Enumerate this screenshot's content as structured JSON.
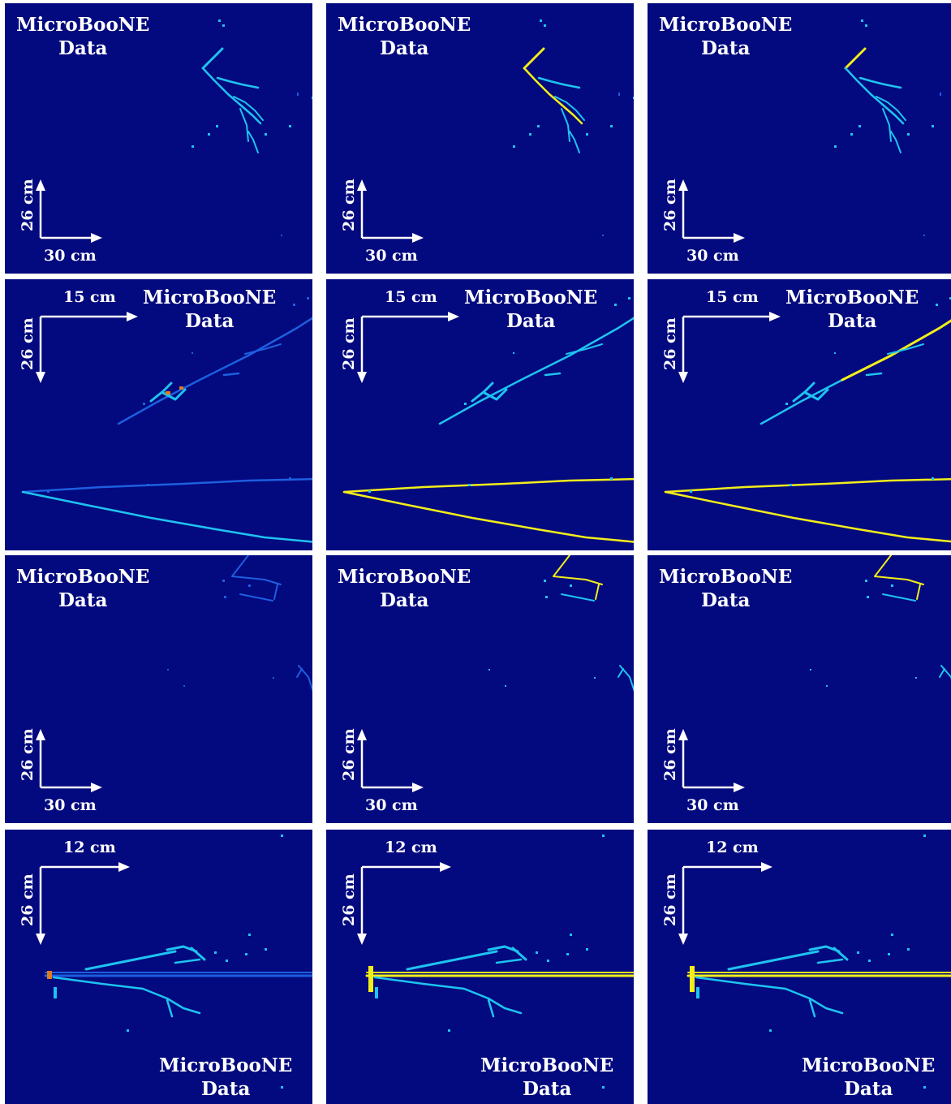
{
  "labels": {
    "experiment": "MicroBooNE",
    "kind": "Data"
  },
  "scales": {
    "row1": {
      "horizontal": "30 cm",
      "vertical": "26 cm"
    },
    "row2": {
      "horizontal": "15 cm",
      "vertical": "26 cm"
    },
    "row3": {
      "horizontal": "30 cm",
      "vertical": "26 cm"
    },
    "row4": {
      "horizontal": "12 cm",
      "vertical": "26 cm"
    }
  },
  "colors": {
    "background": "#03097e",
    "track_cyan": "#1ec3f0",
    "track_blue": "#1d5fe0",
    "highlight_yellow": "#f2ee1a",
    "hot_orange": "#e07a20"
  }
}
